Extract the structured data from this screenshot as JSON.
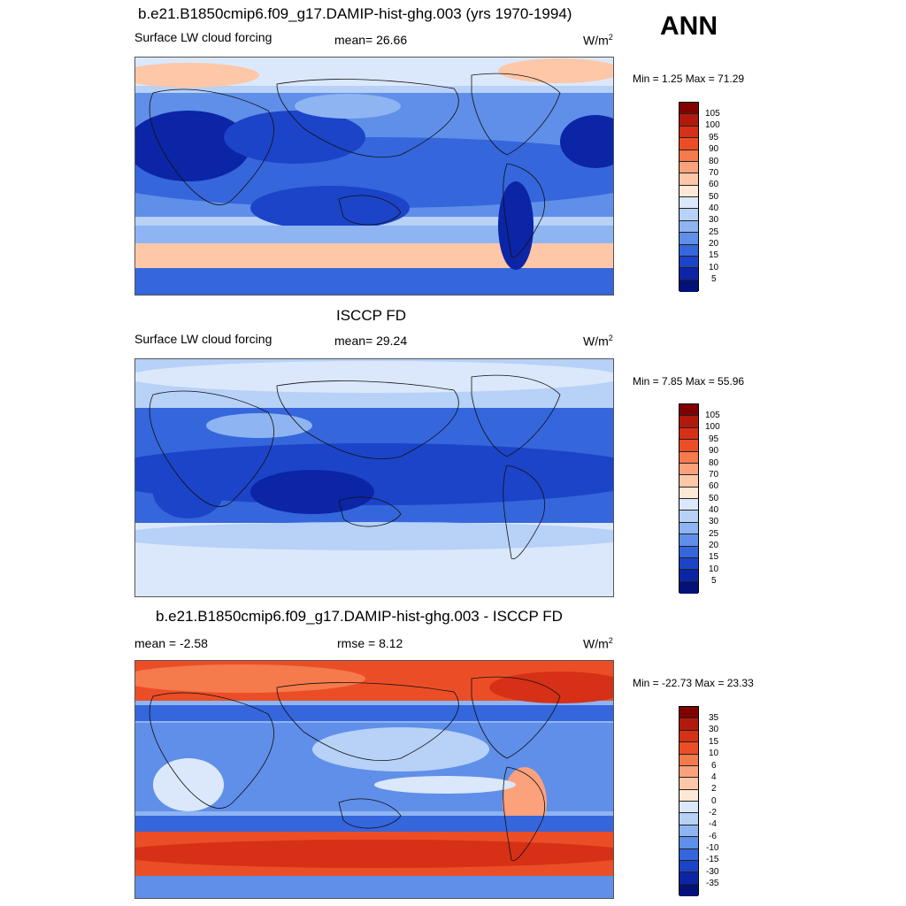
{
  "header": {
    "season": "ANN"
  },
  "panels": [
    {
      "title": "b.e21.B1850cmip6.f09_g17.DAMIP-hist-ghg.003 (yrs 1970-1994)",
      "left_label": "Surface LW cloud forcing",
      "center_label": "mean=  26.66",
      "units": "W/m",
      "units_sup": "2",
      "minmax": "Min =   1.25 Max =  71.29",
      "colorbar_labels": [
        "105",
        "100",
        "95",
        "90",
        "80",
        "70",
        "60",
        "50",
        "40",
        "30",
        "25",
        "20",
        "15",
        "10",
        "5"
      ]
    },
    {
      "title": "ISCCP FD",
      "left_label": "Surface LW cloud forcing",
      "center_label": "mean=  29.24",
      "units": "W/m",
      "units_sup": "2",
      "minmax": "Min =   7.85 Max =  55.96",
      "colorbar_labels": [
        "105",
        "100",
        "95",
        "90",
        "80",
        "70",
        "60",
        "50",
        "40",
        "30",
        "25",
        "20",
        "15",
        "10",
        "5"
      ]
    },
    {
      "title": "b.e21.B1850cmip6.f09_g17.DAMIP-hist-ghg.003 - ISCCP FD",
      "left_label": "mean =  -2.58",
      "center_label": "rmse =   8.12",
      "units": "W/m",
      "units_sup": "2",
      "minmax": "Min = -22.73 Max =  23.33",
      "colorbar_labels": [
        "35",
        "30",
        "15",
        "10",
        "6",
        "4",
        "2",
        "0",
        "-2",
        "-4",
        "-6",
        "-10",
        "-15",
        "-30",
        "-35"
      ]
    }
  ],
  "colors": {
    "palette": [
      "#800000",
      "#b01a0c",
      "#d63016",
      "#eb4e27",
      "#f57a4c",
      "#fba27d",
      "#fdc7a8",
      "#fde8d6",
      "#dbe8fb",
      "#b7d1f7",
      "#8fb4f2",
      "#5f8fe8",
      "#3566dc",
      "#1b44c8",
      "#0b25a6",
      "#031178"
    ]
  }
}
